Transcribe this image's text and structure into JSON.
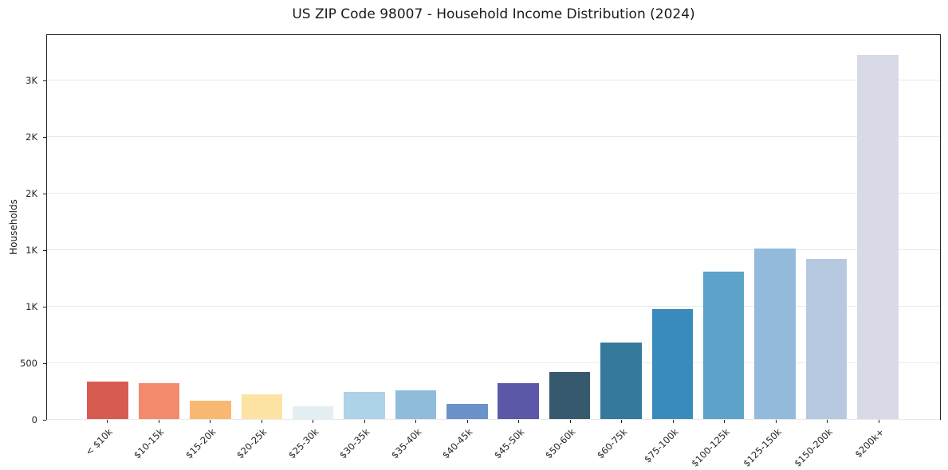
{
  "title": "US ZIP Code 98007 - Household Income Distribution (2024)",
  "chart_data": {
    "type": "bar",
    "title": "US ZIP Code 98007 - Household Income Distribution (2024)",
    "xlabel": "",
    "ylabel": "Households",
    "categories": [
      "< $10k",
      "$10-15k",
      "$15-20k",
      "$20-25k",
      "$25-30k",
      "$30-35k",
      "$35-40k",
      "$40-45k",
      "$45-50k",
      "$50-60k",
      "$60-75k",
      "$75-100k",
      "$100-125k",
      "$125-150k",
      "$150-200k",
      "$200k+"
    ],
    "values": [
      330,
      318,
      165,
      216,
      113,
      239,
      253,
      134,
      315,
      420,
      682,
      977,
      1305,
      1510,
      1424,
      3230
    ],
    "bar_colors": [
      "#d85b52",
      "#f28a6b",
      "#fab973",
      "#fce3a3",
      "#e4eff3",
      "#aed2e8",
      "#8fbcdb",
      "#6b92c9",
      "#5b58a7",
      "#37596e",
      "#35799d",
      "#3a8bbd",
      "#5ba3c9",
      "#93badb",
      "#b6c9e0",
      "#d9dae8"
    ],
    "ylim": [
      0,
      3408
    ],
    "yticks": [
      {
        "value": 0,
        "label": "0"
      },
      {
        "value": 500,
        "label": "500"
      },
      {
        "value": 1000,
        "label": "1K"
      },
      {
        "value": 1500,
        "label": "1K"
      },
      {
        "value": 2000,
        "label": "2K"
      },
      {
        "value": 2500,
        "label": "2K"
      },
      {
        "value": 3000,
        "label": "3K"
      }
    ],
    "grid": "horizontal",
    "legend": "none",
    "colors": {
      "background": "#ffffff",
      "gridline": "#e9e9e9",
      "frame": "#222222",
      "text": "#1a1a1a"
    }
  }
}
